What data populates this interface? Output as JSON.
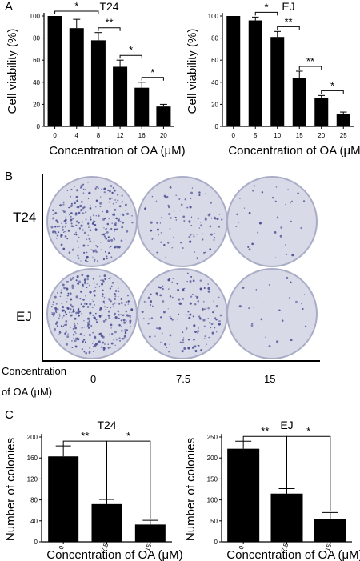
{
  "panels": {
    "a": "A",
    "b": "B",
    "c": "C"
  },
  "colors": {
    "bar": "#000000",
    "plate_base": "#d8dae8",
    "plate_rim": "#a9acc6",
    "colony": "#4a4f93"
  },
  "panel_b": {
    "rows": [
      "T24",
      "EJ"
    ],
    "conc_label_line1": "Concentration",
    "conc_label_line2": "of OA (μM)",
    "concentrations": [
      "0",
      "7.5",
      "15"
    ]
  },
  "chart_data": [
    {
      "id": "a-t24",
      "type": "bar",
      "title": "T24",
      "xlabel": "Concentration of OA (μM)",
      "ylabel": "Cell viability (%)",
      "categories": [
        "0",
        "4",
        "8",
        "12",
        "16",
        "20"
      ],
      "values": [
        100,
        89,
        78,
        54,
        35,
        18
      ],
      "errors": [
        0,
        8,
        7,
        6,
        5,
        2
      ],
      "ylim": [
        0,
        100
      ],
      "yticks": [
        0,
        20,
        40,
        60,
        80,
        100
      ],
      "significance": [
        {
          "from": 0,
          "to": 2,
          "label": "*"
        },
        {
          "from": 2,
          "to": 3,
          "label": "**"
        },
        {
          "from": 3,
          "to": 4,
          "label": "*"
        },
        {
          "from": 4,
          "to": 5,
          "label": "*"
        }
      ]
    },
    {
      "id": "a-ej",
      "type": "bar",
      "title": "EJ",
      "xlabel": "Concentration of OA (μM)",
      "ylabel": "Cell viability (%)",
      "categories": [
        "0",
        "5",
        "10",
        "15",
        "20",
        "25"
      ],
      "values": [
        100,
        96,
        81,
        44,
        26,
        11
      ],
      "errors": [
        0,
        3,
        5,
        6,
        2,
        2
      ],
      "ylim": [
        0,
        100
      ],
      "yticks": [
        0,
        20,
        40,
        60,
        80,
        100
      ],
      "significance": [
        {
          "from": 1,
          "to": 2,
          "label": "*"
        },
        {
          "from": 2,
          "to": 3,
          "label": "**"
        },
        {
          "from": 3,
          "to": 4,
          "label": "**"
        },
        {
          "from": 4,
          "to": 5,
          "label": "*"
        }
      ]
    },
    {
      "id": "c-t24",
      "type": "bar",
      "title": "T24",
      "xlabel": "Concentration of OA (μM)",
      "ylabel": "Number of colonies",
      "categories": [
        "0",
        "7.5",
        "15"
      ],
      "values": [
        163,
        72,
        33
      ],
      "errors": [
        20,
        9,
        8
      ],
      "ylim": [
        0,
        200
      ],
      "yticks": [
        0,
        40,
        80,
        120,
        160,
        200
      ],
      "significance": [
        {
          "from": 0,
          "to": 1,
          "label": "**"
        },
        {
          "from": 1,
          "to": 2,
          "label": "*"
        }
      ]
    },
    {
      "id": "c-ej",
      "type": "bar",
      "title": "EJ",
      "xlabel": "Concentration of OA (μM)",
      "ylabel": "Number of colonies",
      "categories": [
        "0",
        "7.5",
        "15"
      ],
      "values": [
        222,
        115,
        55
      ],
      "errors": [
        18,
        12,
        15
      ],
      "ylim": [
        0,
        250
      ],
      "yticks": [
        0,
        50,
        100,
        150,
        200,
        250
      ],
      "significance": [
        {
          "from": 0,
          "to": 1,
          "label": "**"
        },
        {
          "from": 1,
          "to": 2,
          "label": "*"
        }
      ]
    }
  ]
}
